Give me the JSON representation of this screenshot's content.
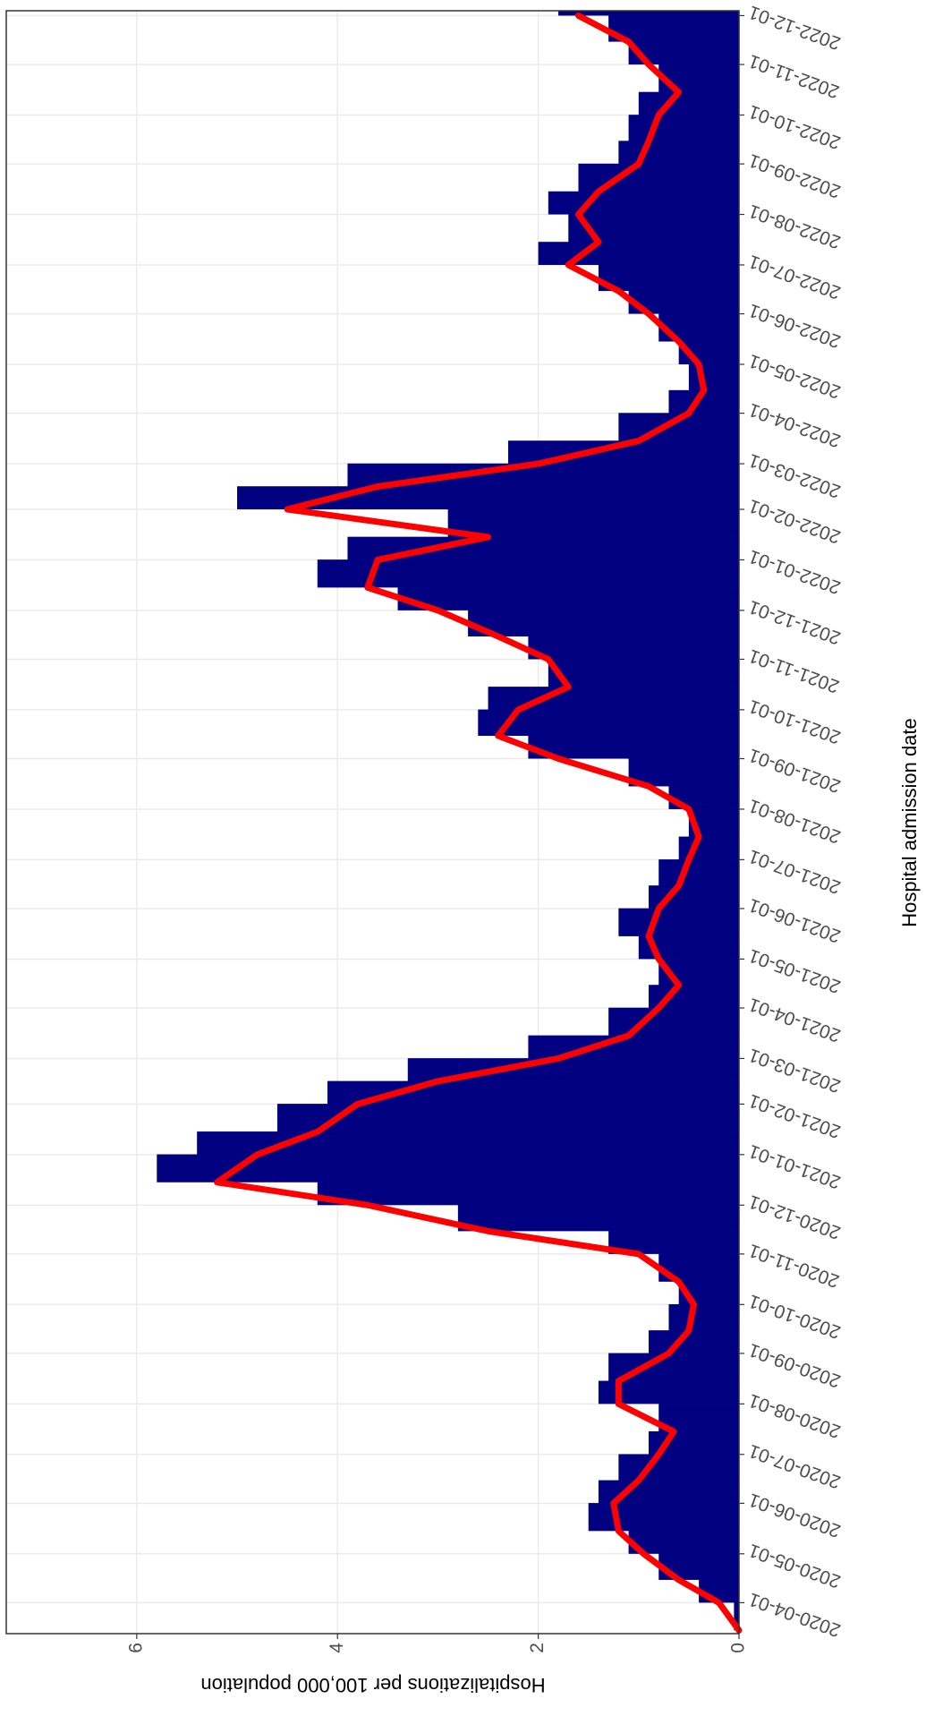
{
  "chart_data": {
    "type": "bar",
    "x_label": "Hospital admission date",
    "y_label": "Hospitalizations per 100,000 population",
    "x": [
      "2020-03-15",
      "2020-04-01",
      "2020-04-15",
      "2020-05-01",
      "2020-05-15",
      "2020-06-01",
      "2020-06-15",
      "2020-07-01",
      "2020-07-15",
      "2020-08-01",
      "2020-08-15",
      "2020-09-01",
      "2020-09-15",
      "2020-10-01",
      "2020-10-15",
      "2020-11-01",
      "2020-11-15",
      "2020-12-01",
      "2020-12-15",
      "2021-01-01",
      "2021-01-15",
      "2021-02-01",
      "2021-02-15",
      "2021-03-01",
      "2021-03-15",
      "2021-04-01",
      "2021-04-15",
      "2021-05-01",
      "2021-05-15",
      "2021-06-01",
      "2021-06-15",
      "2021-07-01",
      "2021-07-15",
      "2021-08-01",
      "2021-08-15",
      "2021-09-01",
      "2021-09-15",
      "2021-10-01",
      "2021-10-15",
      "2021-11-01",
      "2021-11-15",
      "2021-12-01",
      "2021-12-15",
      "2022-01-01",
      "2022-01-15",
      "2022-02-01",
      "2022-02-15",
      "2022-03-01",
      "2022-03-15",
      "2022-04-01",
      "2022-04-15",
      "2022-05-01",
      "2022-05-15",
      "2022-06-01",
      "2022-06-15",
      "2022-07-01",
      "2022-07-15",
      "2022-08-01",
      "2022-08-15",
      "2022-09-01",
      "2022-09-15",
      "2022-10-01",
      "2022-10-15",
      "2022-11-01",
      "2022-11-15",
      "2022-12-01"
    ],
    "series": [
      {
        "type": "bar",
        "color": "#000080",
        "values": [
          0.05,
          0.4,
          0.8,
          1.1,
          1.5,
          1.4,
          1.2,
          0.9,
          0.8,
          1.4,
          1.3,
          0.9,
          0.7,
          0.6,
          0.8,
          1.3,
          2.8,
          4.2,
          5.8,
          5.4,
          4.6,
          4.1,
          3.3,
          2.1,
          1.3,
          0.9,
          0.8,
          1.0,
          1.2,
          0.9,
          0.8,
          0.6,
          0.5,
          0.7,
          1.1,
          2.1,
          2.6,
          2.5,
          1.9,
          2.1,
          2.7,
          3.4,
          4.2,
          3.9,
          2.9,
          5.0,
          3.9,
          2.3,
          1.2,
          0.7,
          0.5,
          0.6,
          0.8,
          1.1,
          1.4,
          2.0,
          1.7,
          1.9,
          1.6,
          1.2,
          1.1,
          1.0,
          0.8,
          1.1,
          1.3,
          1.8
        ]
      },
      {
        "type": "line",
        "color": "#ff0000",
        "values": [
          0.0,
          0.2,
          0.6,
          0.95,
          1.2,
          1.25,
          1.0,
          0.8,
          0.65,
          1.2,
          1.2,
          0.7,
          0.5,
          0.45,
          0.6,
          1.0,
          2.5,
          3.7,
          5.2,
          4.8,
          4.2,
          3.8,
          3.0,
          1.8,
          1.1,
          0.8,
          0.6,
          0.8,
          0.9,
          0.8,
          0.6,
          0.5,
          0.4,
          0.5,
          0.9,
          1.8,
          2.4,
          2.2,
          1.7,
          1.9,
          2.4,
          3.0,
          3.7,
          3.6,
          2.5,
          4.5,
          3.6,
          2.0,
          1.0,
          0.5,
          0.35,
          0.4,
          0.6,
          0.9,
          1.2,
          1.7,
          1.4,
          1.6,
          1.4,
          1.0,
          0.9,
          0.8,
          0.6,
          0.9,
          1.1,
          1.6
        ]
      }
    ],
    "xlim": [
      "2020-03-13",
      "2022-12-04"
    ],
    "xticks": [
      "2020-04-01",
      "2020-05-01",
      "2020-06-01",
      "2020-07-01",
      "2020-08-01",
      "2020-09-01",
      "2020-10-01",
      "2020-11-01",
      "2020-12-01",
      "2021-01-01",
      "2021-02-01",
      "2021-03-01",
      "2021-04-01",
      "2021-05-01",
      "2021-06-01",
      "2021-07-01",
      "2021-08-01",
      "2021-09-01",
      "2021-10-01",
      "2021-11-01",
      "2021-12-01",
      "2022-01-01",
      "2022-02-01",
      "2022-03-01",
      "2022-04-01",
      "2022-05-01",
      "2022-06-01",
      "2022-07-01",
      "2022-08-01",
      "2022-09-01",
      "2022-10-01",
      "2022-11-01",
      "2022-12-01"
    ],
    "ylim": [
      0,
      7.3
    ],
    "yticks": [
      0,
      2,
      4,
      6
    ],
    "grid": true
  }
}
